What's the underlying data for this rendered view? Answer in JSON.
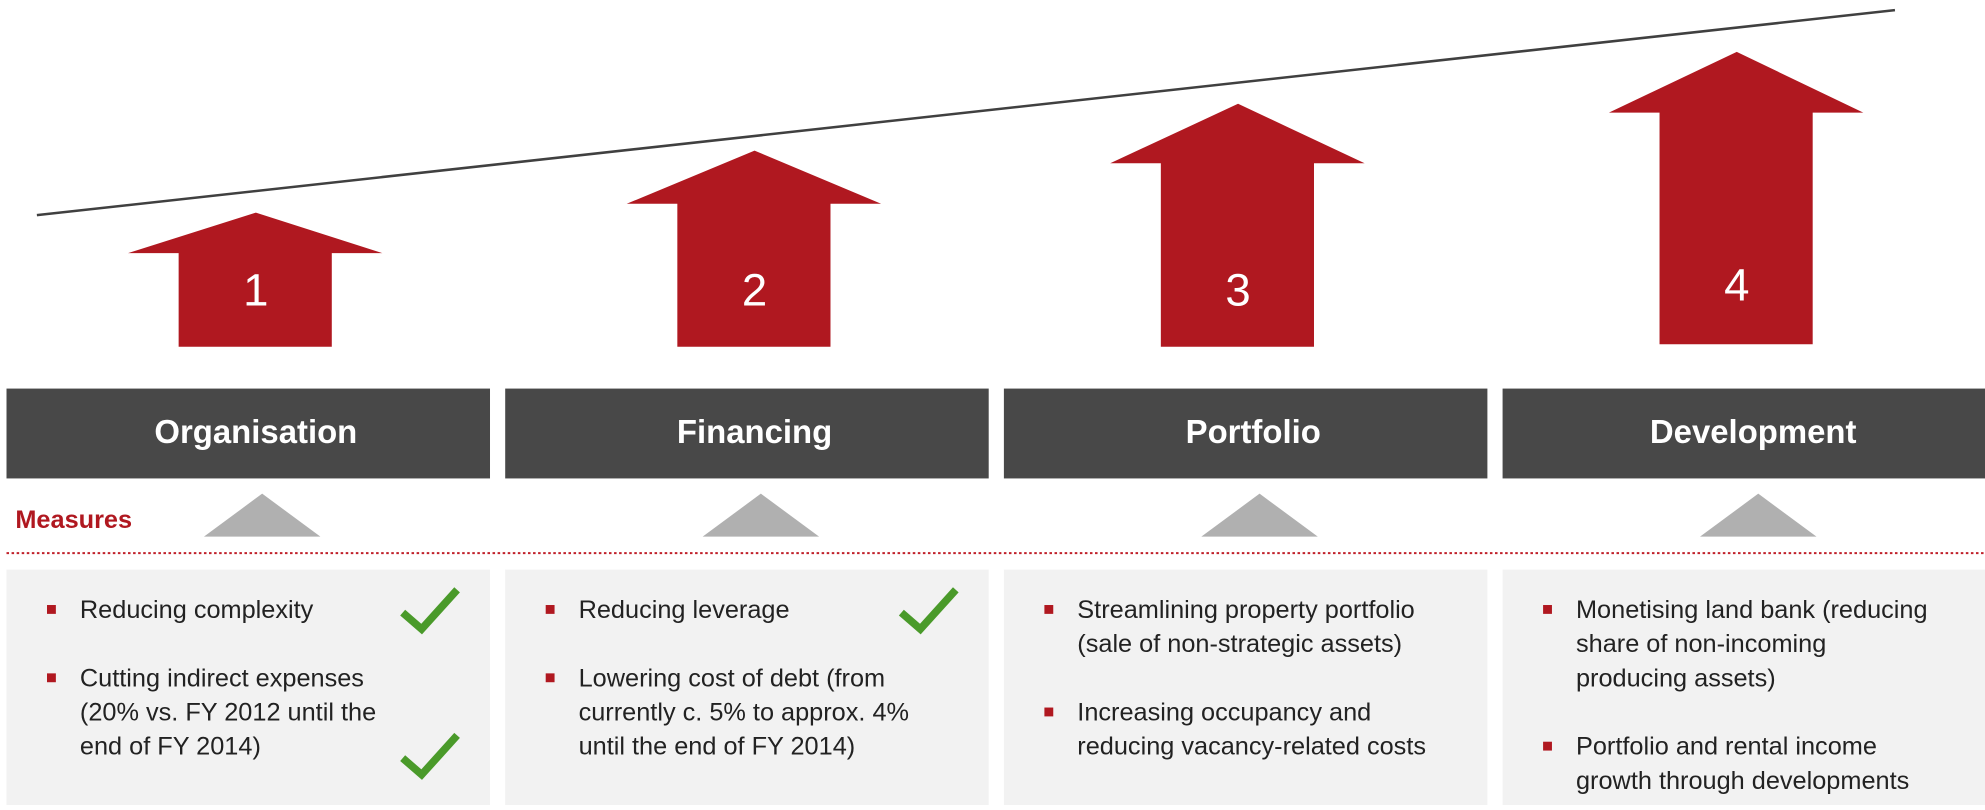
{
  "steps": [
    {
      "number": "1",
      "title": "Organisation",
      "bullets": [
        [
          "Reducing complexity"
        ],
        [
          "Cutting indirect expenses",
          "(20% vs. FY 2012 until the",
          "end of FY 2014)"
        ]
      ]
    },
    {
      "number": "2",
      "title": "Financing",
      "bullets": [
        [
          "Reducing leverage"
        ],
        [
          "Lowering cost of debt (from",
          "currently c. 5% to approx. 4%",
          "until the end of FY 2014)"
        ]
      ]
    },
    {
      "number": "3",
      "title": "Portfolio",
      "bullets": [
        [
          "Streamlining property portfolio",
          "(sale of non-strategic assets)"
        ],
        [
          "Increasing occupancy and",
          "reducing  vacancy-related costs"
        ]
      ]
    },
    {
      "number": "4",
      "title": "Development",
      "bullets": [
        [
          "Monetising land bank (reducing",
          "share of non-incoming",
          "producing assets)"
        ],
        [
          "Portfolio and rental income",
          "growth through developments"
        ]
      ]
    }
  ],
  "measures_label": "Measures"
}
